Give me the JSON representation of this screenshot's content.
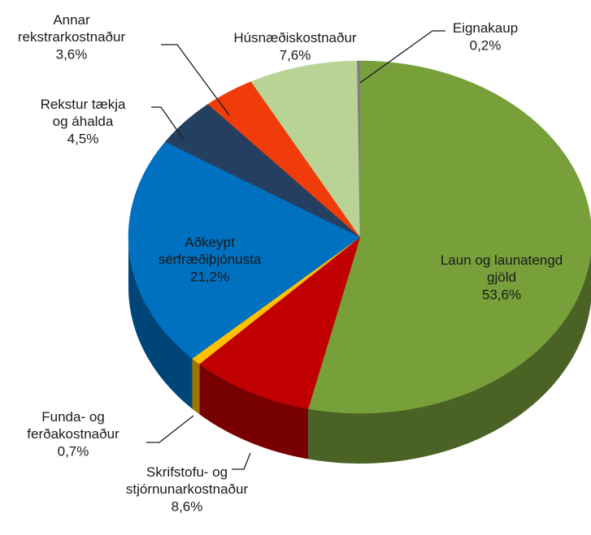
{
  "chart_data": {
    "type": "pie",
    "categories": [
      "Laun og launatengd gjöld",
      "Skrifstofu- og stjórnunarkostnaður",
      "Funda- og ferðakostnaður",
      "Aðkeypt sérfræðiþjónusta",
      "Rekstur tækja og áhalda",
      "Annar rekstrarkostnaður",
      "Húsnæðiskostnaður",
      "Eignakaup"
    ],
    "values": [
      53.6,
      8.6,
      0.7,
      21.2,
      4.5,
      3.6,
      7.6,
      0.2
    ],
    "value_labels": [
      "53,6%",
      "8,6%",
      "0,7%",
      "21,2%",
      "4,5%",
      "3,6%",
      "7,6%",
      "0,2%"
    ],
    "colors": [
      "#77a03a",
      "#c00000",
      "#ffc000",
      "#0070c0",
      "#243f60",
      "#f03c0a",
      "#b9d395",
      "#7f7f7f"
    ]
  }
}
